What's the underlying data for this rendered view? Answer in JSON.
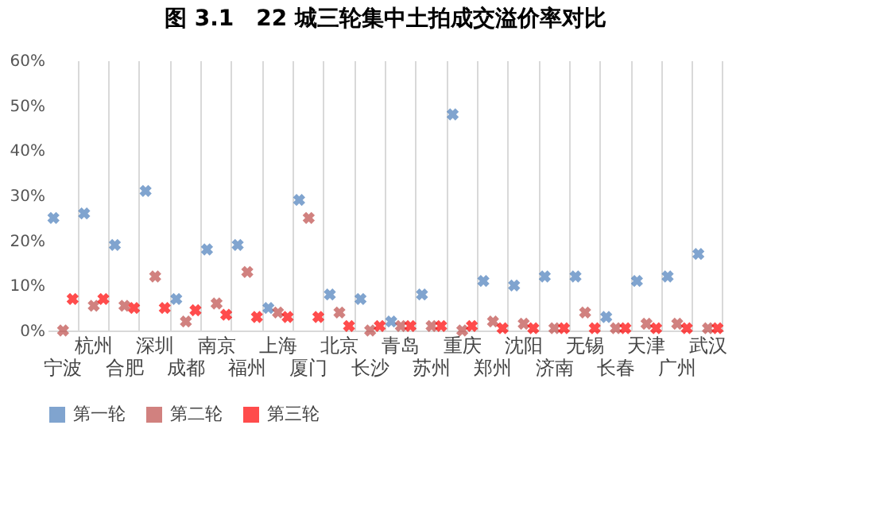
{
  "chart_data": {
    "type": "scatter",
    "title": "图 3.1　22 城三轮集中土拍成交溢价率对比",
    "categories": [
      "宁波",
      "杭州",
      "合肥",
      "深圳",
      "成都",
      "南京",
      "福州",
      "上海",
      "厦门",
      "北京",
      "长沙",
      "青岛",
      "苏州",
      "重庆",
      "郑州",
      "沈阳",
      "济南",
      "无锡",
      "长春",
      "天津",
      "广州",
      "武汉"
    ],
    "series": [
      {
        "name": "第一轮",
        "color": "#4a7ebb",
        "values": [
          25,
          26,
          19,
          31,
          7,
          18,
          19,
          5,
          29,
          8,
          7,
          2,
          8,
          48,
          11,
          10,
          12,
          12,
          3,
          11,
          12,
          17
        ]
      },
      {
        "name": "第二轮",
        "color": "#be4b48",
        "values": [
          0,
          5.5,
          5.5,
          12,
          2,
          6,
          13,
          4,
          25,
          4,
          0,
          1,
          1,
          0,
          2,
          1.5,
          0.5,
          4,
          0.5,
          1.5,
          1.5,
          0.5
        ]
      },
      {
        "name": "第三轮",
        "color": "#ff0000",
        "values": [
          7,
          7,
          5,
          5,
          4.5,
          3.5,
          3,
          3,
          3,
          1,
          1,
          1,
          1,
          1,
          0.5,
          0.5,
          0.5,
          0.5,
          0.5,
          0.5,
          0.5,
          0.5
        ]
      }
    ],
    "ylim": [
      0,
      60
    ],
    "yticks": [
      {
        "value": 0,
        "label": "0%"
      },
      {
        "value": 10,
        "label": "10%"
      },
      {
        "value": 20,
        "label": "20%"
      },
      {
        "value": 30,
        "label": "30%"
      },
      {
        "value": 40,
        "label": "40%"
      },
      {
        "value": 50,
        "label": "50%"
      },
      {
        "value": 60,
        "label": "60%"
      }
    ],
    "grid": "x",
    "legend": "bottom",
    "marker": "cross"
  }
}
